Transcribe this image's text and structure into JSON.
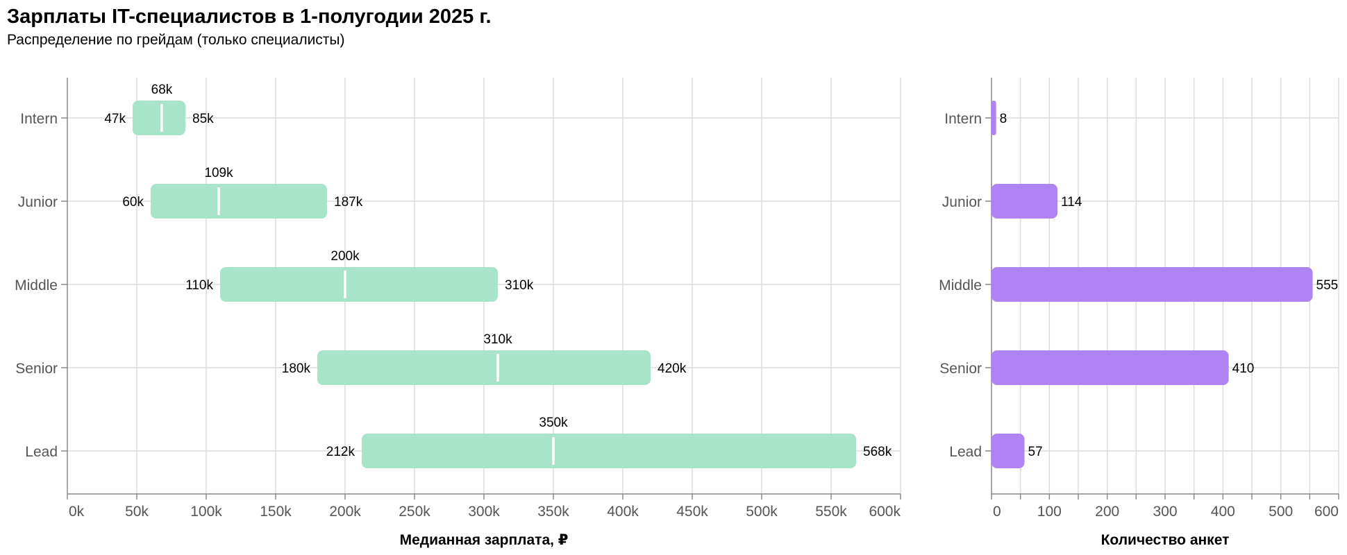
{
  "title": "Зарплаты IT-специалистов в 1-полугодии 2025 г.",
  "subtitle": "Распределение по грейдам (только специалисты)",
  "chart_data": [
    {
      "type": "bar",
      "subtype": "range",
      "categories": [
        "Intern",
        "Junior",
        "Middle",
        "Senior",
        "Lead"
      ],
      "low": [
        47,
        60,
        110,
        180,
        212
      ],
      "high": [
        85,
        187,
        310,
        420,
        568
      ],
      "median": [
        68,
        109,
        200,
        310,
        350
      ],
      "low_labels": [
        "47k",
        "60k",
        "110k",
        "180k",
        "212k"
      ],
      "high_labels": [
        "85k",
        "187k",
        "310k",
        "420k",
        "568k"
      ],
      "median_labels": [
        "68k",
        "109k",
        "200k",
        "310k",
        "350k"
      ],
      "xlabel": "Медианная зарплата, ₽",
      "xlim": [
        0,
        600
      ],
      "ticks": [
        0,
        50,
        100,
        150,
        200,
        250,
        300,
        350,
        400,
        450,
        500,
        550,
        600
      ],
      "tick_labels": [
        "0k",
        "50k",
        "100k",
        "150k",
        "200k",
        "250k",
        "300k",
        "350k",
        "400k",
        "450k",
        "500k",
        "550k",
        "600k"
      ],
      "grid": true,
      "color": "#a8e4ca",
      "median_color": "#ffffff"
    },
    {
      "type": "bar",
      "categories": [
        "Intern",
        "Junior",
        "Middle",
        "Senior",
        "Lead"
      ],
      "values": [
        8,
        114,
        555,
        410,
        57
      ],
      "value_labels": [
        "8",
        "114",
        "555",
        "410",
        "57"
      ],
      "xlabel": "Количество анкет",
      "xlim": [
        0,
        600
      ],
      "ticks": [
        0,
        100,
        200,
        300,
        400,
        500,
        600
      ],
      "tick_labels": [
        "0",
        "100",
        "200",
        "300",
        "400",
        "500",
        "600"
      ],
      "minor_ticks": [
        50,
        150,
        250,
        350,
        450,
        550
      ],
      "grid": true,
      "color": "#b083f5"
    }
  ]
}
